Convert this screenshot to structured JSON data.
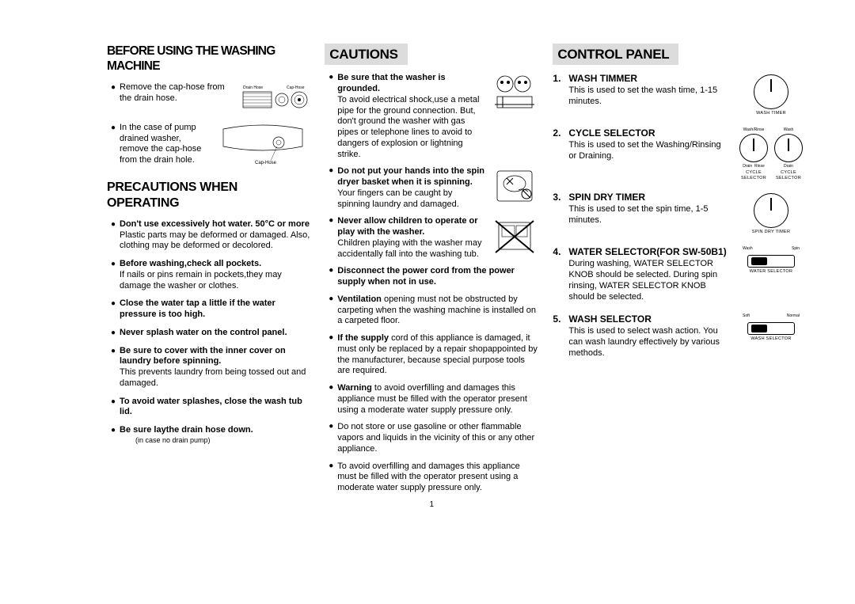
{
  "col1": {
    "heading1": "BEFORE USING THE WASHING MACHINE",
    "items1": [
      {
        "bold": "",
        "text": "Remove the cap-hose from the drain hose."
      },
      {
        "bold": "",
        "text": "In the case of pump drained washer, remove the cap-hose from the drain hole."
      }
    ],
    "illus_labels": {
      "drain_hose": "Drain Hose",
      "cap_hose": "Cap-Hose",
      "cap_hose2": "Cap-Hose"
    },
    "heading2": "PRECAUTIONS WHEN OPERATING",
    "items2": [
      {
        "bold": "Don't use excessively hot water. 50°C or more",
        "text": "Plastic parts may be deformed or damaged. Also, clothing may be deformed or decolored."
      },
      {
        "bold": "Before washing,check all pockets.",
        "text": "If nails or pins remain in pockets,they may damage the washer or clothes."
      },
      {
        "bold": "Close the water tap a little if the water pressure is too high.",
        "text": ""
      },
      {
        "bold": "Never splash water on the control panel.",
        "text": ""
      },
      {
        "bold": "Be sure to cover with the inner cover on laundry before spinning.",
        "text": "This prevents laundry from being tossed out and damaged."
      },
      {
        "bold": "To avoid water splashes, close the wash tub lid.",
        "text": ""
      },
      {
        "bold": "Be sure laythe drain hose down.",
        "text": "",
        "note": "(in case no drain pump)"
      }
    ]
  },
  "col2": {
    "heading": "CAUTIONS",
    "items": [
      {
        "bold": "Be sure that the washer is grounded.",
        "text": "To avoid electrical shock,use a metal pipe for the ground connection. But, don't ground the washer with gas pipes or telephone lines to avoid to dangers of explosion or lightning strike.",
        "fig": true
      },
      {
        "bold": "Do not put your hands into the spin dryer basket when it is spinning.",
        "text": "Your fingers can be caught by spinning laundry and damaged.",
        "fig": true
      },
      {
        "bold": "Never allow children to operate or play with the washer.",
        "text": "Children playing with the washer may accidentally fall into the washing tub.",
        "fig": true
      },
      {
        "bold": "Disconnect the power cord from the power supply when not in use.",
        "text": "",
        "fig": false
      },
      {
        "bold": "",
        "boldInline": "Ventilation",
        "text": " opening must not be obstructed by carpeting when the washing machine is installed on a carpeted floor.",
        "fig": false
      },
      {
        "bold": "",
        "boldInline": "If the supply",
        "text": " cord of this appliance is damaged, it  must only be replaced by a repair shopappointed by the manufacturer, because special purpose tools are required.",
        "fig": false
      },
      {
        "bold": "",
        "boldInline": "Warning",
        "text": " to avoid overfilling and damages this appliance must be filled with the operator present using a moderate water supply pressure only.",
        "fig": false
      },
      {
        "bold": "",
        "text": "Do not store or use gasoline or other flammable vapors and liquids in the vicinity of this or any other appliance.",
        "fig": false
      },
      {
        "bold": "",
        "text": "To avoid overfilling and damages this appliance must be filled with the operator present using a moderate water supply pressure only.",
        "fig": false
      }
    ]
  },
  "col3": {
    "heading": "CONTROL PANEL",
    "items": [
      {
        "n": "1.",
        "title": "WASH TIMMER",
        "text": "This is used to set the wash time, 1-15 minutes.",
        "fig": "wash_timer",
        "label": "WASH TIMER"
      },
      {
        "n": "2.",
        "title": "CYCLE SELECTOR",
        "text": "This is used to set the Washing/Rinsing or Draining.",
        "fig": "cycle_sel",
        "label": "CYCLE SELECTOR"
      },
      {
        "n": "3.",
        "title": "SPIN DRY TIMER",
        "text": "This is used to set the spin time, 1-5 minutes.",
        "fig": "spin_timer",
        "label": "SPIN DRY TIMER"
      },
      {
        "n": "4.",
        "title": "WATER SELECTOR(FOR SW-50B1)",
        "text": "During washing, WATER SELECTOR KNOB should be selected. During spin rinsing, WATER SELECTOR KNOB should be  selected.",
        "fig": "water_sel",
        "label": "WATER SELECTOR"
      },
      {
        "n": "5.",
        "title": "WASH SELECTOR",
        "text": "This is used to select wash action. You can wash laundry effectively by various methods.",
        "fig": "wash_sel",
        "label": "WASH SELECTOR"
      }
    ],
    "dial_labels": {
      "wash_rinse": "Wash/Rinse",
      "wash": "Wash",
      "drain": "Drain",
      "rinse": "Rinse",
      "spin": "Spin",
      "soft": "Soft",
      "normal": "Normal"
    }
  },
  "page_number": "1",
  "colors": {
    "heading_bg": "#dcdcdc",
    "text": "#000000",
    "bg": "#ffffff"
  }
}
